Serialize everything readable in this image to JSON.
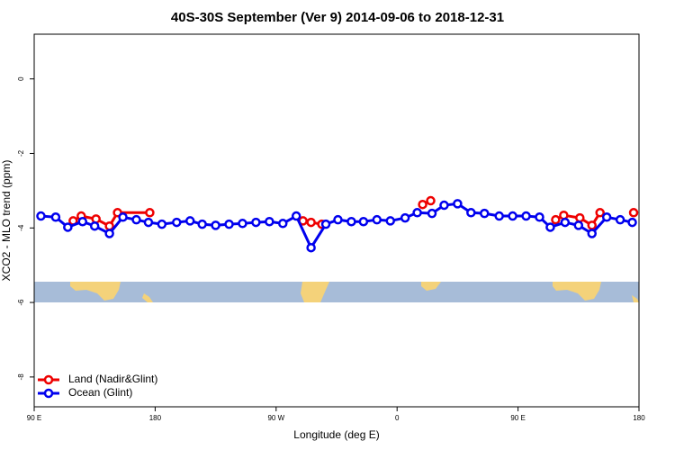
{
  "chart_data": {
    "type": "line",
    "title": "40S-30S September (Ver 9)   2014-09-06 to 2018-12-31",
    "x_label": "Longitude (deg E)",
    "y_label": "XCO2 - MLO trend (ppm)",
    "xlim": [
      90,
      540
    ],
    "xticks": [
      {
        "value": 90,
        "label": "90 E"
      },
      {
        "value": 180,
        "label": "180"
      },
      {
        "value": 270,
        "label": "90 W"
      },
      {
        "value": 360,
        "label": "0"
      },
      {
        "value": 450,
        "label": "90 E"
      },
      {
        "value": 540,
        "label": "180"
      }
    ],
    "ylim": [
      -8.8,
      1.2
    ],
    "yticks": [
      0,
      -2,
      -4,
      -6,
      -8
    ],
    "legend": "bottom-left",
    "series": [
      {
        "name": "Land (Nadir&Glint)",
        "color": "#ee0000",
        "x": [
          119,
          125,
          136,
          146,
          152,
          176,
          null,
          290,
          296,
          304,
          null,
          379,
          385,
          null,
          478,
          484,
          496,
          505,
          511,
          null,
          536
        ],
        "values": [
          -3.81,
          -3.68,
          -3.76,
          -3.95,
          -3.59,
          -3.59,
          null,
          -3.81,
          -3.85,
          -3.9,
          null,
          -3.37,
          -3.27,
          null,
          -3.78,
          -3.66,
          -3.73,
          -3.93,
          -3.59,
          null,
          -3.59
        ]
      },
      {
        "name": "Ocean (Glint)",
        "color": "#0000ee",
        "x": [
          95,
          106,
          115,
          126,
          135,
          146,
          156,
          166,
          175,
          185,
          196,
          206,
          215,
          225,
          235,
          245,
          255,
          265,
          275,
          285,
          296,
          307,
          316,
          326,
          335,
          345,
          355,
          366,
          375,
          386,
          395,
          405,
          415,
          425,
          436,
          446,
          456,
          466,
          474,
          485,
          495,
          505,
          516,
          526,
          535
        ],
        "values": [
          -3.68,
          -3.71,
          -3.98,
          -3.83,
          -3.95,
          -4.15,
          -3.71,
          -3.78,
          -3.85,
          -3.9,
          -3.85,
          -3.81,
          -3.9,
          -3.93,
          -3.9,
          -3.88,
          -3.85,
          -3.83,
          -3.88,
          -3.68,
          -4.53,
          -3.9,
          -3.78,
          -3.83,
          -3.83,
          -3.78,
          -3.81,
          -3.73,
          -3.59,
          -3.61,
          -3.39,
          -3.35,
          -3.59,
          -3.61,
          -3.68,
          -3.68,
          -3.68,
          -3.71,
          -3.98,
          -3.85,
          -3.93,
          -4.15,
          -3.71,
          -3.78,
          -3.85
        ]
      }
    ]
  }
}
